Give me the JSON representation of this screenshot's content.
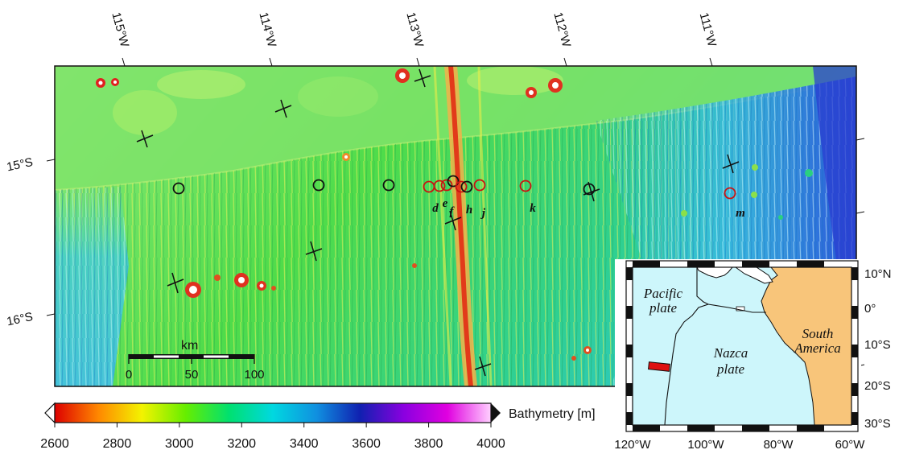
{
  "main_map": {
    "lon_labels": [
      "115°W",
      "114°W",
      "113°W",
      "112°W",
      "111°W"
    ],
    "lat_labels": [
      "15°S",
      "16°S"
    ],
    "sites": [
      {
        "label": "",
        "color": "#111111"
      },
      {
        "label": "",
        "color": "#111111"
      },
      {
        "label": "",
        "color": "#111111"
      },
      {
        "label": "d",
        "color": "#cc1111"
      },
      {
        "label": "e",
        "color": "#cc1111"
      },
      {
        "label": "f",
        "color": "#cc1111"
      },
      {
        "label": "",
        "color": "#111111"
      },
      {
        "label": "",
        "color": "#cc1111"
      },
      {
        "label": "h",
        "color": "#111111"
      },
      {
        "label": "j",
        "color": "#cc1111"
      },
      {
        "label": "k",
        "color": "#cc1111"
      },
      {
        "label": "",
        "color": "#111111"
      },
      {
        "label": "m",
        "color": "#cc1111"
      }
    ],
    "scale_bar": {
      "unit": "km",
      "ticks": [
        "0",
        "50",
        "100"
      ]
    }
  },
  "colorbar": {
    "title": "Bathymetry [m]",
    "ticks": [
      "2600",
      "2800",
      "3000",
      "3200",
      "3400",
      "3600",
      "3800",
      "4000"
    ],
    "colors": [
      "#dd0000",
      "#ff8800",
      "#f3f300",
      "#66ee00",
      "#00e070",
      "#00d8e0",
      "#1090e0",
      "#1020b0",
      "#8a00e0",
      "#e000e0",
      "#ffd0ff"
    ]
  },
  "inset_map": {
    "lon_labels": [
      "120°W",
      "100°W",
      "80°W",
      "60°W"
    ],
    "lat_labels": [
      "10°N",
      "0°",
      "10°S",
      "20°S",
      "30°S"
    ],
    "plates": [
      {
        "name": "Pacific\nplate"
      },
      {
        "name": "Nazca\nplate"
      },
      {
        "name": "South\nAmerica"
      }
    ],
    "colors": {
      "ocean": "#cdf6fb",
      "land": "#f8c57a",
      "study_box": "#dd1111"
    }
  }
}
